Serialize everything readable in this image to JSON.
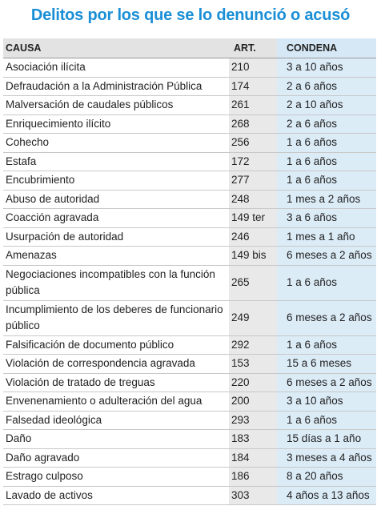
{
  "title": "Delitos por los que se lo denunció o acusó",
  "table": {
    "header": [
      "CAUSA",
      "ART.",
      "CONDENA"
    ],
    "rows": [
      [
        "Asociación ilícita",
        "210",
        "3 a 10 años"
      ],
      [
        "Defraudación a la Administración Pública",
        "174",
        "2 a 6 años"
      ],
      [
        "Malversación de caudales públicos",
        "261",
        "2 a 10 años"
      ],
      [
        "Enriquecimiento ilícito",
        "268",
        "2 a 6 años"
      ],
      [
        "Cohecho",
        "256",
        "1 a 6 años"
      ],
      [
        "Estafa",
        "172",
        "1 a 6 años"
      ],
      [
        "Encubrimiento",
        "277",
        "1 a 6 años"
      ],
      [
        "Abuso de autoridad",
        "248",
        "1 mes a 2 años"
      ],
      [
        "Coacción agravada",
        "149 ter",
        "3 a 6 años"
      ],
      [
        "Usurpación de autoridad",
        "246",
        "1 mes a 1 año"
      ],
      [
        "Amenazas",
        "149 bis",
        "6 meses a 2 años"
      ],
      [
        "Negociaciones incompatibles con la función pública",
        "265",
        "1 a 6 años"
      ],
      [
        "Incumplimiento de los deberes de funcionario público",
        "249",
        "6 meses a 2 años"
      ],
      [
        "Falsificación de documento público",
        "292",
        "1 a 6 años"
      ],
      [
        "Violación de correspondencia agravada",
        "153",
        "15 a 6 meses"
      ],
      [
        "Violación de tratado de treguas",
        "220",
        "6 meses a 2 años"
      ],
      [
        "Envenenamiento o adulteración del agua",
        "200",
        "3 a 10 años"
      ],
      [
        "Falsedad ideológica",
        "293",
        "1 a 6 años"
      ],
      [
        "Daño",
        "183",
        "15 días a 1 año"
      ],
      [
        "Daño agravado",
        "184",
        "3 meses a 4 años"
      ],
      [
        "Estrago culposo",
        "186",
        "8 a 20 años"
      ],
      [
        "Lavado de activos",
        "303",
        "4 años a 13 años"
      ]
    ]
  }
}
